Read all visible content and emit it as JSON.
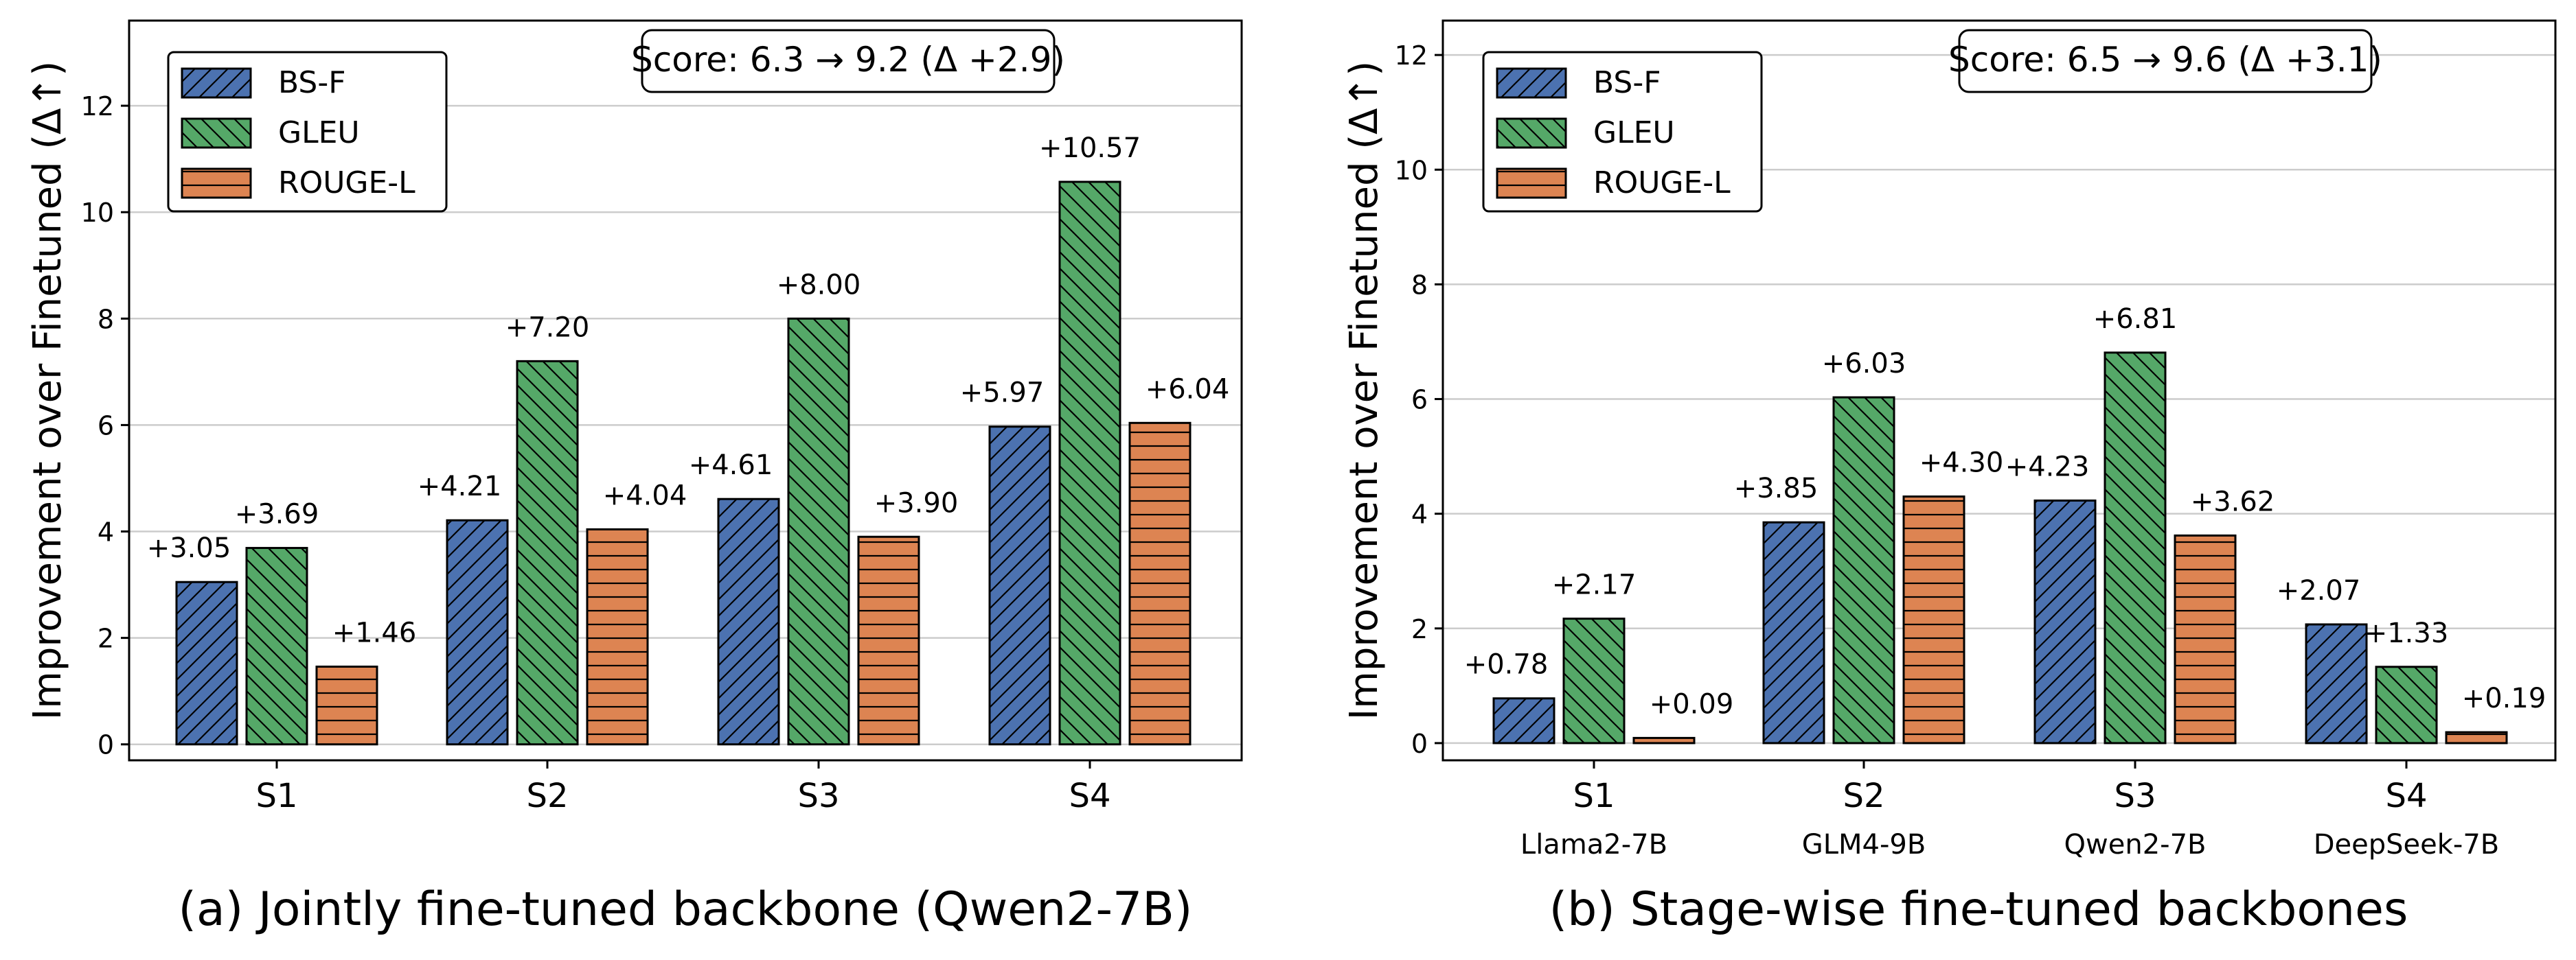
{
  "chart_data": [
    {
      "type": "bar",
      "caption": "(a) Jointly fine-tuned backbone (Qwen2-7B)",
      "ylabel": "Improvement over Finetuned (Δ↑)",
      "ylim": [
        -0.3,
        13.6
      ],
      "yticks": [
        0,
        2,
        4,
        6,
        8,
        10,
        12
      ],
      "categories": [
        "S1",
        "S2",
        "S3",
        "S4"
      ],
      "sublabels": [],
      "series": [
        {
          "name": "BS-F",
          "values": [
            3.05,
            4.21,
            4.61,
            5.97
          ],
          "labels": [
            "+3.05",
            "+4.21",
            "+4.61",
            "+5.97"
          ]
        },
        {
          "name": "GLEU",
          "values": [
            3.69,
            7.2,
            8.0,
            10.57
          ],
          "labels": [
            "+3.69",
            "+7.20",
            "+8.00",
            "+10.57"
          ]
        },
        {
          "name": "ROUGE-L",
          "values": [
            1.46,
            4.04,
            3.9,
            6.04
          ],
          "labels": [
            "+1.46",
            "+4.04",
            "+3.90",
            "+6.04"
          ]
        }
      ],
      "annotation": "Score: 6.3 → 9.2 (Δ +2.9)",
      "legend": "top-left",
      "grid": "y"
    },
    {
      "type": "bar",
      "caption": "(b) Stage-wise fine-tuned backbones",
      "ylabel": "Improvement over Finetuned (Δ↑)",
      "ylim": [
        -0.3,
        12.6
      ],
      "yticks": [
        0,
        2,
        4,
        6,
        8,
        10,
        12
      ],
      "categories": [
        "S1",
        "S2",
        "S3",
        "S4"
      ],
      "sublabels": [
        "Llama2-7B",
        "GLM4-9B",
        "Qwen2-7B",
        "DeepSeek-7B"
      ],
      "series": [
        {
          "name": "BS-F",
          "values": [
            0.78,
            3.85,
            4.23,
            2.07
          ],
          "labels": [
            "+0.78",
            "+3.85",
            "+4.23",
            "+2.07"
          ]
        },
        {
          "name": "GLEU",
          "values": [
            2.17,
            6.03,
            6.81,
            1.33
          ],
          "labels": [
            "+2.17",
            "+6.03",
            "+6.81",
            "+1.33"
          ]
        },
        {
          "name": "ROUGE-L",
          "values": [
            0.09,
            4.3,
            3.62,
            0.19
          ],
          "labels": [
            "+0.09",
            "+4.30",
            "+3.62",
            "+0.19"
          ]
        }
      ],
      "annotation": "Score: 6.5 → 9.6 (Δ +3.1)",
      "legend": "top-left",
      "grid": "y"
    }
  ],
  "colors": {
    "BS-F": "#4c72b0",
    "GLEU": "#55a868",
    "ROUGE-L": "#dd8452",
    "grid": "#cccccc",
    "edge": "#000000"
  }
}
